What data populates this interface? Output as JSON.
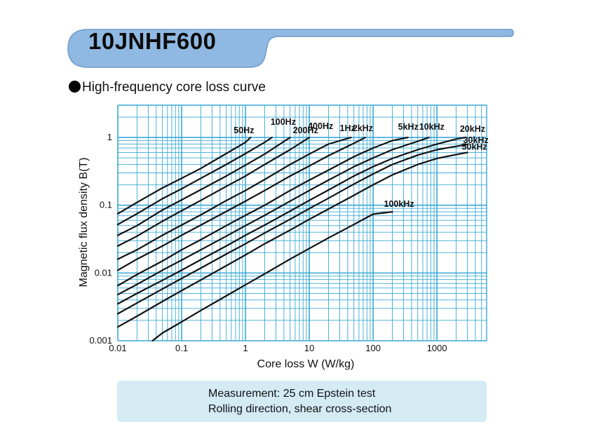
{
  "header": {
    "grade": "10JNHF600",
    "accent_color": "#8fb9e2",
    "accent_stroke": "#6f9cc8"
  },
  "chart_heading": "High-frequency core loss curve",
  "chart_data": {
    "type": "line",
    "title": "High-frequency core loss curve",
    "xlabel": "Core loss W (W/kg)",
    "ylabel": "Magnetic flux density B(T)",
    "x_scale": "log",
    "y_scale": "log",
    "xlim": [
      0.01,
      6000
    ],
    "ylim": [
      0.001,
      3
    ],
    "grid": true,
    "grid_color": "#3aa9d6",
    "line_color": "#111111",
    "x_ticks": [
      0.01,
      0.1,
      1,
      10,
      100,
      1000
    ],
    "x_tick_labels": [
      "0.01",
      "0.1",
      "1",
      "10",
      "100",
      "1000"
    ],
    "y_ticks": [
      0.001,
      0.01,
      0.1,
      1
    ],
    "y_tick_labels": [
      "0.001",
      "0.01",
      "0.1",
      "1"
    ],
    "series": [
      {
        "name": "50Hz",
        "points": [
          [
            0.01,
            0.075
          ],
          [
            0.02,
            0.11
          ],
          [
            0.05,
            0.18
          ],
          [
            0.1,
            0.25
          ],
          [
            0.2,
            0.35
          ],
          [
            0.5,
            0.58
          ],
          [
            1,
            0.85
          ],
          [
            1.2,
            1.0
          ]
        ]
      },
      {
        "name": "100Hz",
        "points": [
          [
            0.01,
            0.052
          ],
          [
            0.02,
            0.075
          ],
          [
            0.05,
            0.125
          ],
          [
            0.1,
            0.175
          ],
          [
            0.2,
            0.25
          ],
          [
            0.5,
            0.4
          ],
          [
            1,
            0.58
          ],
          [
            2,
            0.85
          ],
          [
            2.6,
            1.0
          ]
        ]
      },
      {
        "name": "200Hz",
        "points": [
          [
            0.01,
            0.036
          ],
          [
            0.02,
            0.05
          ],
          [
            0.05,
            0.085
          ],
          [
            0.1,
            0.12
          ],
          [
            0.2,
            0.17
          ],
          [
            0.5,
            0.27
          ],
          [
            1,
            0.39
          ],
          [
            2,
            0.57
          ],
          [
            5,
            1.0
          ]
        ]
      },
      {
        "name": "400Hz",
        "points": [
          [
            0.01,
            0.025
          ],
          [
            0.02,
            0.035
          ],
          [
            0.05,
            0.058
          ],
          [
            0.1,
            0.083
          ],
          [
            0.2,
            0.118
          ],
          [
            0.5,
            0.19
          ],
          [
            1,
            0.27
          ],
          [
            2,
            0.4
          ],
          [
            5,
            0.66
          ],
          [
            10,
            1.0
          ]
        ]
      },
      {
        "name": "1Hz",
        "points": [
          [
            0.01,
            0.016
          ],
          [
            0.02,
            0.022
          ],
          [
            0.05,
            0.036
          ],
          [
            0.1,
            0.051
          ],
          [
            0.2,
            0.072
          ],
          [
            0.5,
            0.117
          ],
          [
            1,
            0.165
          ],
          [
            2,
            0.24
          ],
          [
            5,
            0.4
          ],
          [
            10,
            0.57
          ],
          [
            20,
            0.8
          ],
          [
            45,
            1.0
          ]
        ]
      },
      {
        "name": "2kHz",
        "points": [
          [
            0.01,
            0.011
          ],
          [
            0.02,
            0.016
          ],
          [
            0.05,
            0.025
          ],
          [
            0.1,
            0.036
          ],
          [
            0.2,
            0.051
          ],
          [
            0.5,
            0.081
          ],
          [
            1,
            0.115
          ],
          [
            2,
            0.165
          ],
          [
            5,
            0.27
          ],
          [
            10,
            0.38
          ],
          [
            20,
            0.54
          ],
          [
            50,
            0.82
          ],
          [
            75,
            1.0
          ]
        ]
      },
      {
        "name": "5kHz",
        "points": [
          [
            0.01,
            0.0065
          ],
          [
            0.02,
            0.0095
          ],
          [
            0.05,
            0.015
          ],
          [
            0.1,
            0.022
          ],
          [
            0.2,
            0.031
          ],
          [
            0.5,
            0.05
          ],
          [
            1,
            0.071
          ],
          [
            2,
            0.1
          ],
          [
            5,
            0.165
          ],
          [
            10,
            0.235
          ],
          [
            20,
            0.33
          ],
          [
            50,
            0.52
          ],
          [
            100,
            0.7
          ],
          [
            200,
            0.9
          ],
          [
            350,
            1.0
          ]
        ]
      },
      {
        "name": "10kHz",
        "points": [
          [
            0.01,
            0.0048
          ],
          [
            0.02,
            0.0068
          ],
          [
            0.05,
            0.011
          ],
          [
            0.1,
            0.0155
          ],
          [
            0.2,
            0.022
          ],
          [
            0.5,
            0.035
          ],
          [
            1,
            0.05
          ],
          [
            2,
            0.071
          ],
          [
            5,
            0.115
          ],
          [
            10,
            0.165
          ],
          [
            20,
            0.235
          ],
          [
            50,
            0.37
          ],
          [
            100,
            0.5
          ],
          [
            200,
            0.66
          ],
          [
            500,
            0.88
          ],
          [
            750,
            1.0
          ]
        ]
      },
      {
        "name": "20kHz",
        "points": [
          [
            0.01,
            0.0035
          ],
          [
            0.02,
            0.005
          ],
          [
            0.05,
            0.0078
          ],
          [
            0.1,
            0.011
          ],
          [
            0.2,
            0.0157
          ],
          [
            0.5,
            0.025
          ],
          [
            1,
            0.036
          ],
          [
            2,
            0.051
          ],
          [
            5,
            0.082
          ],
          [
            10,
            0.118
          ],
          [
            20,
            0.168
          ],
          [
            50,
            0.27
          ],
          [
            100,
            0.37
          ],
          [
            200,
            0.49
          ],
          [
            500,
            0.66
          ],
          [
            1000,
            0.8
          ],
          [
            2000,
            0.95
          ],
          [
            2800,
            1.0
          ]
        ]
      },
      {
        "name": "30kHz",
        "points": [
          [
            0.01,
            0.0025
          ],
          [
            0.02,
            0.0036
          ],
          [
            0.05,
            0.0058
          ],
          [
            0.1,
            0.0083
          ],
          [
            0.2,
            0.0118
          ],
          [
            0.5,
            0.019
          ],
          [
            1,
            0.027
          ],
          [
            2,
            0.039
          ],
          [
            5,
            0.062
          ],
          [
            10,
            0.089
          ],
          [
            20,
            0.127
          ],
          [
            50,
            0.205
          ],
          [
            100,
            0.29
          ],
          [
            200,
            0.4
          ],
          [
            500,
            0.55
          ],
          [
            1000,
            0.66
          ],
          [
            2000,
            0.74
          ],
          [
            3000,
            0.79
          ]
        ]
      },
      {
        "name": "50kHz",
        "points": [
          [
            0.01,
            0.0016
          ],
          [
            0.02,
            0.0023
          ],
          [
            0.05,
            0.0038
          ],
          [
            0.1,
            0.0055
          ],
          [
            0.2,
            0.0079
          ],
          [
            0.5,
            0.0128
          ],
          [
            1,
            0.0185
          ],
          [
            2,
            0.027
          ],
          [
            5,
            0.043
          ],
          [
            10,
            0.062
          ],
          [
            20,
            0.088
          ],
          [
            50,
            0.14
          ],
          [
            100,
            0.2
          ],
          [
            200,
            0.28
          ],
          [
            500,
            0.4
          ],
          [
            1000,
            0.49
          ],
          [
            2000,
            0.56
          ],
          [
            3000,
            0.6
          ]
        ]
      },
      {
        "name": "100kHz",
        "points": [
          [
            0.035,
            0.001
          ],
          [
            0.05,
            0.0013
          ],
          [
            0.1,
            0.0019
          ],
          [
            0.2,
            0.0028
          ],
          [
            0.5,
            0.0046
          ],
          [
            1,
            0.0067
          ],
          [
            2,
            0.0097
          ],
          [
            5,
            0.016
          ],
          [
            10,
            0.023
          ],
          [
            20,
            0.033
          ],
          [
            50,
            0.052
          ],
          [
            100,
            0.074
          ],
          [
            200,
            0.08
          ]
        ]
      }
    ]
  },
  "notes": {
    "line1": "Measurement: 25 cm Epstein test",
    "line2": "Rolling direction,  shear cross-section"
  }
}
